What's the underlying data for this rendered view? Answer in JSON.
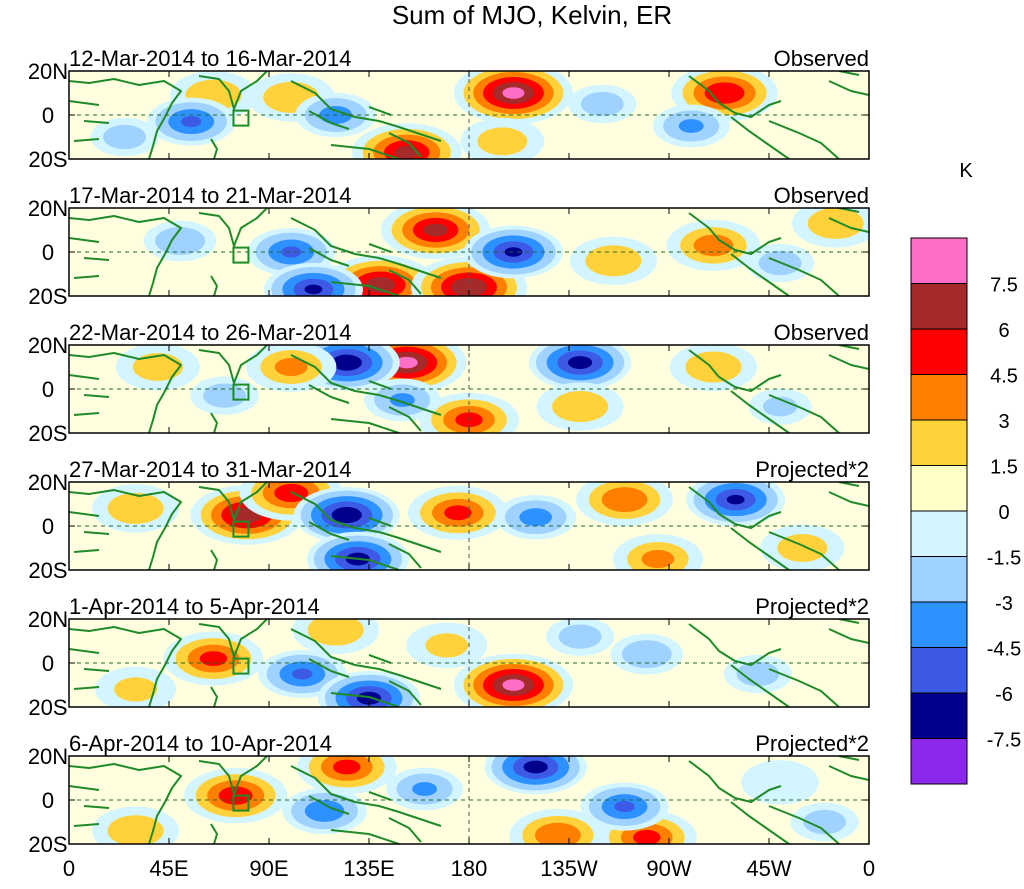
{
  "chart_data": {
    "type": "heatmap",
    "title": "Sum of MJO, Kelvin, ER",
    "units": "K",
    "x_range": [
      0,
      360
    ],
    "y_range": [
      -20,
      20
    ],
    "xtick_labels": [
      "0",
      "45E",
      "90E",
      "135E",
      "180",
      "135W",
      "90W",
      "45W",
      "0"
    ],
    "ytick_labels": [
      "20N",
      "0",
      "20S"
    ],
    "colorbar": {
      "labels": [
        "7.5",
        "6",
        "4.5",
        "3",
        "1.5",
        "0",
        "-1.5",
        "-3",
        "-4.5",
        "-6",
        "-7.5"
      ],
      "colors": [
        "#ff6ec7",
        "#a52a2a",
        "#ff0000",
        "#ff7f00",
        "#ffd23c",
        "#ffffc8",
        "#d2f5ff",
        "#a0d2ff",
        "#2d91ff",
        "#3c5ae6",
        "#00008c",
        "#8c28eb"
      ]
    },
    "panels": [
      {
        "period": "12-Mar-2014 to 16-Mar-2014",
        "type_label": "Observed",
        "anomalies": [
          {
            "lon": 200,
            "lat": 10,
            "value": 8
          },
          {
            "lon": 295,
            "lat": 10,
            "value": 6
          },
          {
            "lon": 152,
            "lat": -17,
            "value": 6.5
          },
          {
            "lon": 100,
            "lat": 8,
            "value": 3
          },
          {
            "lon": 65,
            "lat": 9,
            "value": 3
          },
          {
            "lon": 195,
            "lat": -12,
            "value": 2.5
          },
          {
            "lon": 55,
            "lat": -3,
            "value": -4.5
          },
          {
            "lon": 120,
            "lat": 0,
            "value": -3.5
          },
          {
            "lon": 280,
            "lat": -5,
            "value": -3
          },
          {
            "lon": 240,
            "lat": 5,
            "value": -2
          },
          {
            "lon": 25,
            "lat": -10,
            "value": -2
          }
        ]
      },
      {
        "period": "17-Mar-2014 to 21-Mar-2014",
        "type_label": "Observed",
        "anomalies": [
          {
            "lon": 165,
            "lat": 10,
            "value": 6.5
          },
          {
            "lon": 140,
            "lat": -15,
            "value": 7
          },
          {
            "lon": 180,
            "lat": -16,
            "value": 7.5
          },
          {
            "lon": 290,
            "lat": 3,
            "value": 4
          },
          {
            "lon": 345,
            "lat": 13,
            "value": 3
          },
          {
            "lon": 245,
            "lat": -4,
            "value": 3
          },
          {
            "lon": 200,
            "lat": 0,
            "value": -6
          },
          {
            "lon": 100,
            "lat": 0,
            "value": -4.5
          },
          {
            "lon": 110,
            "lat": -17,
            "value": -6
          },
          {
            "lon": 50,
            "lat": 5,
            "value": -2.5
          },
          {
            "lon": 320,
            "lat": -5,
            "value": -2
          }
        ]
      },
      {
        "period": "22-Mar-2014 to 26-Mar-2014",
        "type_label": "Observed",
        "anomalies": [
          {
            "lon": 152,
            "lat": 12,
            "value": 8
          },
          {
            "lon": 125,
            "lat": 12,
            "value": -7
          },
          {
            "lon": 230,
            "lat": 12,
            "value": -6.5
          },
          {
            "lon": 100,
            "lat": 10,
            "value": 3.5
          },
          {
            "lon": 40,
            "lat": 10,
            "value": 2.5
          },
          {
            "lon": 180,
            "lat": -14,
            "value": 5
          },
          {
            "lon": 230,
            "lat": -8,
            "value": 3
          },
          {
            "lon": 290,
            "lat": 10,
            "value": 3
          },
          {
            "lon": 150,
            "lat": -5,
            "value": -3
          },
          {
            "lon": 70,
            "lat": -3,
            "value": -2
          },
          {
            "lon": 320,
            "lat": -8,
            "value": -1.5
          }
        ]
      },
      {
        "period": "27-Mar-2014 to 31-Mar-2014",
        "type_label": "Projected*2",
        "anomalies": [
          {
            "lon": 80,
            "lat": 5,
            "value": 7
          },
          {
            "lon": 100,
            "lat": 15,
            "value": 5.5
          },
          {
            "lon": 175,
            "lat": 6,
            "value": 5
          },
          {
            "lon": 250,
            "lat": 12,
            "value": 4.5
          },
          {
            "lon": 30,
            "lat": 8,
            "value": 3
          },
          {
            "lon": 125,
            "lat": 5,
            "value": -7
          },
          {
            "lon": 130,
            "lat": -15,
            "value": -6.5
          },
          {
            "lon": 300,
            "lat": 12,
            "value": -6
          },
          {
            "lon": 210,
            "lat": 4,
            "value": -3.5
          },
          {
            "lon": 265,
            "lat": -15,
            "value": 3.5
          },
          {
            "lon": 330,
            "lat": -10,
            "value": 2.5
          }
        ]
      },
      {
        "period": "1-Apr-2014 to 5-Apr-2014",
        "type_label": "Projected*2",
        "anomalies": [
          {
            "lon": 65,
            "lat": 2,
            "value": 5
          },
          {
            "lon": 200,
            "lat": -10,
            "value": 8
          },
          {
            "lon": 120,
            "lat": 15,
            "value": 3
          },
          {
            "lon": 105,
            "lat": -5,
            "value": -4.5
          },
          {
            "lon": 135,
            "lat": -16,
            "value": -6.5
          },
          {
            "lon": 30,
            "lat": -12,
            "value": 2
          },
          {
            "lon": 260,
            "lat": 4,
            "value": -2.5
          },
          {
            "lon": 310,
            "lat": -5,
            "value": -2
          },
          {
            "lon": 230,
            "lat": 12,
            "value": -2
          },
          {
            "lon": 170,
            "lat": 8,
            "value": 2
          }
        ]
      },
      {
        "period": "6-Apr-2014 to 10-Apr-2014",
        "type_label": "Projected*2",
        "anomalies": [
          {
            "lon": 75,
            "lat": 2,
            "value": 5.5
          },
          {
            "lon": 125,
            "lat": 15,
            "value": 5
          },
          {
            "lon": 210,
            "lat": 15,
            "value": -6.5
          },
          {
            "lon": 220,
            "lat": -16,
            "value": 4.5
          },
          {
            "lon": 260,
            "lat": -17,
            "value": 5
          },
          {
            "lon": 115,
            "lat": -5,
            "value": -4
          },
          {
            "lon": 250,
            "lat": -3,
            "value": -4.5
          },
          {
            "lon": 160,
            "lat": 5,
            "value": -3
          },
          {
            "lon": 30,
            "lat": -14,
            "value": 3
          },
          {
            "lon": 320,
            "lat": 8,
            "value": 1.5
          },
          {
            "lon": 340,
            "lat": -10,
            "value": -2
          }
        ]
      }
    ]
  }
}
